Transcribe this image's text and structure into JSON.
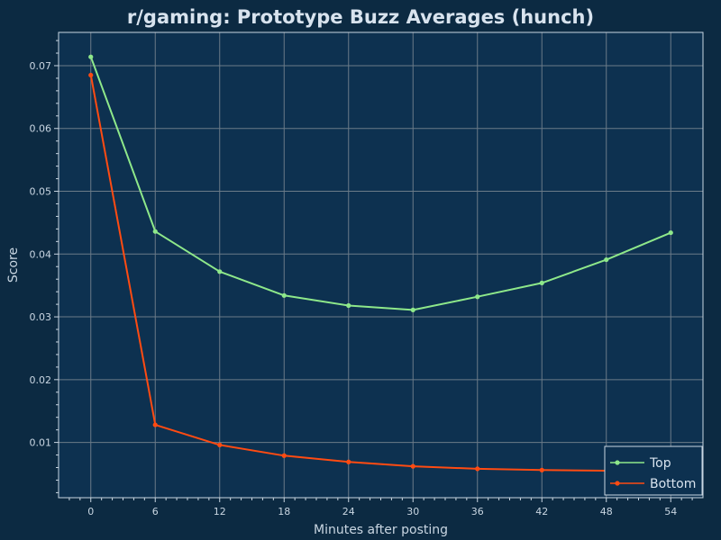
{
  "chart_data": {
    "type": "line",
    "title": "r/gaming: Prototype Buzz Averages (hunch)",
    "xlabel": "Minutes after posting",
    "ylabel": "Score",
    "x": [
      0,
      6,
      12,
      18,
      24,
      30,
      36,
      42,
      48,
      54
    ],
    "xlim": [
      -3,
      57
    ],
    "ylim": [
      0.0012,
      0.0753
    ],
    "xticks": [
      0,
      6,
      12,
      18,
      24,
      30,
      36,
      42,
      48,
      54
    ],
    "yticks": [
      0.01,
      0.02,
      0.03,
      0.04,
      0.05,
      0.06,
      0.07
    ],
    "grid": true,
    "legend_position": "bottom-right",
    "series": [
      {
        "name": "Top",
        "color": "#8ee88a",
        "values": [
          0.0714,
          0.0436,
          0.0372,
          0.0334,
          0.0318,
          0.0311,
          0.0332,
          0.0354,
          0.0391,
          0.0434
        ]
      },
      {
        "name": "Bottom",
        "color": "#ff4b12",
        "values": [
          0.0685,
          0.0128,
          0.0096,
          0.0079,
          0.0069,
          0.0062,
          0.0058,
          0.0056,
          0.0055,
          0.0054
        ]
      }
    ],
    "colors": {
      "background": "#0c2a42",
      "plot_background": "#0d3150",
      "grid": "#6b7b88",
      "axis": "#c9d6e2"
    }
  }
}
